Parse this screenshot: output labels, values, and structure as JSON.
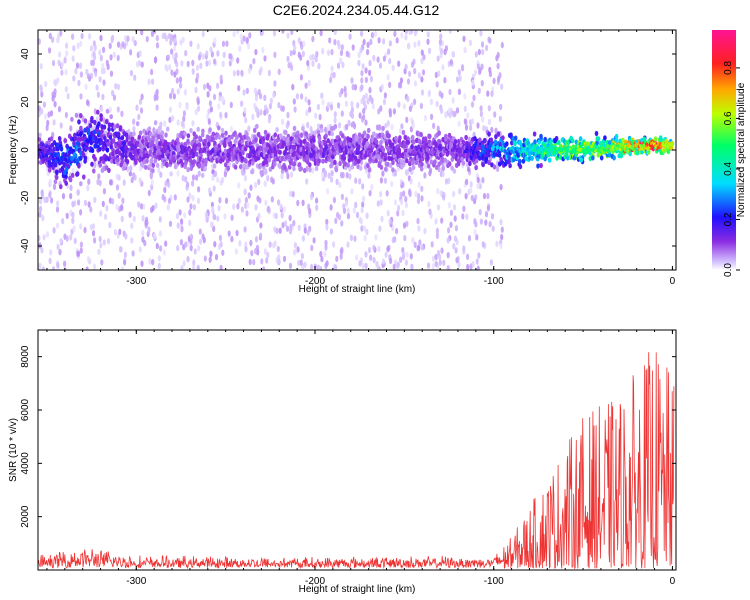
{
  "title": "C2E6.2024.234.05.44.G12",
  "chart_data": [
    {
      "type": "heatmap",
      "xlabel": "Height of straight line (km)",
      "ylabel": "Frequency (Hz)",
      "xlim": [
        -355,
        2
      ],
      "ylim": [
        -50,
        50
      ],
      "x_ticks": [
        -300,
        -200,
        -100,
        0
      ],
      "y_ticks": [
        -40,
        -20,
        0,
        20,
        40
      ],
      "x_tick_labels": [
        "-300",
        "-200",
        "-100",
        "0"
      ],
      "y_tick_labels": [
        "-40",
        "-20",
        "0",
        "20",
        "40"
      ],
      "colorbar": {
        "label": "Normalized spectral amplitude",
        "range": [
          0,
          0.95
        ],
        "ticks": [
          0,
          0.2,
          0.4,
          0.6,
          0.8
        ],
        "tick_labels": [
          "0.0",
          "0.2",
          "0.4",
          "0.6",
          "0.8"
        ],
        "colormap": "rainbow (white-violet-blue-cyan-green-yellow-red-magenta)"
      },
      "energy_profile": [
        {
          "height_km": -355,
          "center_hz": 0,
          "spread_hz": 5,
          "amplitude": 0.15
        },
        {
          "height_km": -340,
          "center_hz": -4,
          "spread_hz": 10,
          "amplitude": 0.25
        },
        {
          "height_km": -325,
          "center_hz": 5,
          "spread_hz": 12,
          "amplitude": 0.22
        },
        {
          "height_km": -300,
          "center_hz": 0,
          "spread_hz": 8,
          "amplitude": 0.12
        },
        {
          "height_km": -200,
          "center_hz": 0,
          "spread_hz": 8,
          "amplitude": 0.12
        },
        {
          "height_km": -120,
          "center_hz": 0,
          "spread_hz": 7,
          "amplitude": 0.12
        },
        {
          "height_km": -90,
          "center_hz": 0,
          "spread_hz": 6,
          "amplitude": 0.35
        },
        {
          "height_km": -60,
          "center_hz": 0,
          "spread_hz": 5,
          "amplitude": 0.55
        },
        {
          "height_km": -30,
          "center_hz": 1,
          "spread_hz": 4,
          "amplitude": 0.65
        },
        {
          "height_km": -10,
          "center_hz": 2,
          "spread_hz": 3,
          "amplitude": 0.85
        },
        {
          "height_km": 0,
          "center_hz": 2,
          "spread_hz": 3,
          "amplitude": 0.6
        }
      ]
    },
    {
      "type": "line",
      "xlabel": "Height of straight line (km)",
      "ylabel": "SNR (10 * v/v)",
      "xlim": [
        -355,
        2
      ],
      "ylim": [
        0,
        9000
      ],
      "x_ticks": [
        -300,
        -200,
        -100,
        0
      ],
      "y_ticks": [
        2000,
        4000,
        6000,
        8000
      ],
      "x_tick_labels": [
        "-300",
        "-200",
        "-100",
        "0"
      ],
      "y_tick_labels": [
        "2000",
        "4000",
        "6000",
        "8000"
      ],
      "series": [
        {
          "color": "#ee3333",
          "envelope": [
            {
              "x": -355,
              "y": 500
            },
            {
              "x": -330,
              "y": 900
            },
            {
              "x": -300,
              "y": 500
            },
            {
              "x": -200,
              "y": 450
            },
            {
              "x": -100,
              "y": 500
            },
            {
              "x": -90,
              "y": 1200
            },
            {
              "x": -70,
              "y": 3500
            },
            {
              "x": -50,
              "y": 5800
            },
            {
              "x": -30,
              "y": 6500
            },
            {
              "x": -10,
              "y": 8500
            },
            {
              "x": 0,
              "y": 7200
            }
          ]
        }
      ]
    }
  ]
}
